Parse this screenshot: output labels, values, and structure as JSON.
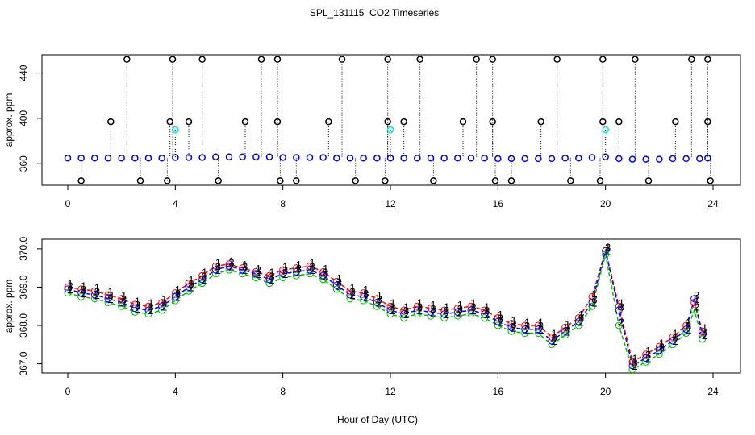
{
  "chart_data": [
    {
      "type": "scatter",
      "title": "SPL_131115  CO2 Timeseries",
      "ylabel": "approx. ppm",
      "xlim": [
        -0.96,
        25.02
      ],
      "ylim": [
        341,
        456
      ],
      "xticks": [
        0,
        4,
        8,
        12,
        16,
        20,
        24
      ],
      "yticks": [
        360,
        400,
        440
      ],
      "series": [
        {
          "color": "#0000ff",
          "x": [
            0,
            0.5,
            1,
            1.5,
            2,
            2.5,
            3,
            3.5,
            4,
            4.5,
            5,
            5.5,
            6,
            6.5,
            7,
            7.5,
            8,
            8.5,
            9,
            9.5,
            10,
            10.5,
            11,
            11.5,
            12,
            12.5,
            13,
            13.5,
            14,
            14.5,
            15,
            15.5,
            16,
            16.5,
            17,
            17.5,
            18,
            18.5,
            19,
            19.5,
            20,
            20.5,
            21,
            21.5,
            22,
            22.5,
            23,
            23.5,
            23.8
          ],
          "values": [
            365,
            365,
            365,
            365,
            365,
            365,
            365,
            365,
            365.5,
            365.5,
            365.5,
            366,
            366,
            366,
            366,
            366,
            365.5,
            365.5,
            365.5,
            365.5,
            365,
            365,
            365,
            365,
            365,
            365,
            365,
            365,
            365,
            365,
            365,
            365,
            364.5,
            364.5,
            364.5,
            364.5,
            364.5,
            365,
            365,
            365.5,
            366,
            364.5,
            364,
            364,
            364,
            364.5,
            364.5,
            364.5,
            365
          ]
        },
        {
          "color": "#000000",
          "x": [
            2.2,
            3.9,
            5.0,
            7.2,
            7.8,
            10.2,
            11.9,
            13.1,
            15.2,
            15.8,
            18.2,
            19.9,
            21.1,
            23.2,
            23.8,
            1.6,
            3.8,
            4.5,
            6.6,
            7.8,
            9.7,
            11.9,
            12.5,
            14.7,
            15.8,
            17.6,
            19.9,
            20.5,
            22.6,
            23.8,
            0.5,
            2.7,
            3.7,
            5.6,
            7.9,
            8.5,
            10.7,
            11.8,
            13.6,
            15.9,
            16.5,
            18.7,
            19.8,
            21.6,
            23.9
          ],
          "values": [
            452,
            452,
            452,
            452,
            452,
            452,
            452,
            452,
            452,
            452,
            452,
            452,
            452,
            452,
            452,
            397,
            397,
            397,
            397,
            397,
            397,
            397,
            397,
            397,
            397,
            397,
            397,
            397,
            397,
            397,
            345,
            345,
            345,
            345,
            345,
            345,
            345,
            345,
            345,
            345,
            345,
            345,
            345,
            345,
            345
          ]
        },
        {
          "color": "#00e5e5",
          "x": [
            4.0,
            12.0,
            20.0
          ],
          "values": [
            390,
            390,
            390
          ]
        }
      ]
    },
    {
      "type": "line",
      "ylabel": "approx. ppm",
      "xlabel": "Hour of Day (UTC)",
      "xlim": [
        -0.96,
        25.02
      ],
      "ylim": [
        366.76,
        370.25
      ],
      "xticks": [
        0,
        4,
        8,
        12,
        16,
        20,
        24
      ],
      "yticks": [
        {
          "value": 367,
          "label": "367.0"
        },
        {
          "value": 368,
          "label": "368.0"
        },
        {
          "value": 369,
          "label": "369.0"
        },
        {
          "value": 370,
          "label": "370.0"
        }
      ],
      "x": [
        0,
        0.5,
        1,
        1.5,
        2,
        2.5,
        3,
        3.5,
        4,
        4.5,
        5,
        5.5,
        6,
        6.5,
        7,
        7.5,
        8,
        8.5,
        9,
        9.5,
        10,
        10.5,
        11,
        11.5,
        12,
        12.5,
        13,
        13.5,
        14,
        14.5,
        15,
        15.5,
        16,
        16.5,
        17,
        17.5,
        18,
        18.5,
        19,
        19.5,
        20,
        20.5,
        21,
        21.5,
        22,
        22.5,
        23,
        23.3,
        23.6
      ],
      "series": [
        {
          "name": "1",
          "color": "#ff0000",
          "values": [
            369.0,
            368.95,
            368.9,
            368.8,
            368.7,
            368.55,
            368.5,
            368.6,
            368.85,
            369.1,
            369.3,
            369.55,
            369.6,
            369.5,
            369.4,
            369.3,
            369.45,
            369.5,
            369.55,
            369.4,
            369.15,
            368.9,
            368.85,
            368.7,
            368.5,
            368.4,
            368.5,
            368.45,
            368.4,
            368.45,
            368.5,
            368.4,
            368.2,
            368.05,
            368.0,
            368.0,
            367.7,
            367.95,
            368.2,
            368.75,
            369.95,
            368.5,
            367.05,
            367.25,
            367.45,
            367.7,
            368.0,
            368.6,
            367.85
          ]
        },
        {
          "name": "2",
          "color": "#00bb00",
          "values": [
            368.85,
            368.75,
            368.7,
            368.6,
            368.5,
            368.35,
            368.3,
            368.4,
            368.65,
            368.9,
            369.1,
            369.35,
            369.45,
            369.35,
            369.25,
            369.1,
            369.25,
            369.3,
            369.35,
            369.2,
            368.95,
            368.7,
            368.65,
            368.5,
            368.3,
            368.2,
            368.3,
            368.25,
            368.2,
            368.25,
            368.3,
            368.2,
            368.0,
            367.85,
            367.8,
            367.8,
            367.5,
            367.75,
            368.0,
            368.5,
            369.85,
            368.0,
            366.85,
            367.05,
            367.25,
            367.5,
            367.8,
            368.4,
            367.65
          ]
        },
        {
          "name": "3",
          "color": "#0000ff",
          "values": [
            368.95,
            368.85,
            368.8,
            368.7,
            368.6,
            368.45,
            368.4,
            368.5,
            368.75,
            369.0,
            369.2,
            369.45,
            369.55,
            369.45,
            369.35,
            369.2,
            369.35,
            369.4,
            369.45,
            369.3,
            369.05,
            368.8,
            368.75,
            368.6,
            368.4,
            368.3,
            368.4,
            368.35,
            368.3,
            368.35,
            368.4,
            368.3,
            368.1,
            367.95,
            367.9,
            367.9,
            367.6,
            367.85,
            368.1,
            368.6,
            369.95,
            368.4,
            366.95,
            367.15,
            367.35,
            367.6,
            367.9,
            368.7,
            367.75
          ]
        }
      ]
    }
  ]
}
